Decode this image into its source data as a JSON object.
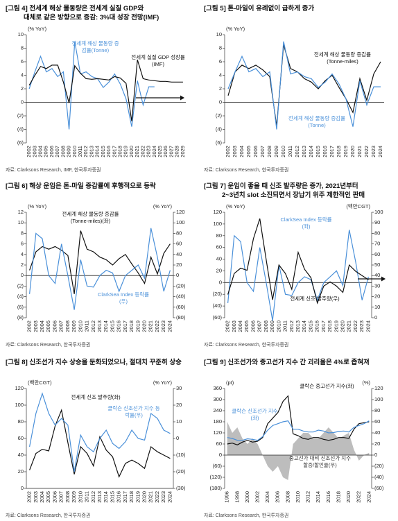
{
  "chart_data": [
    {
      "type": "line",
      "title": [
        "[그림 4] 전세계 해상 물동량은 전세계 실질 GDP와",
        "대체로 같은 방향으로 증감: 3%대 성장 전망(IMF)"
      ],
      "ylabel": "(% YoY)",
      "ylim": [
        -6,
        10
      ],
      "yticks": [
        {
          "value": -6,
          "label": "(6)"
        },
        {
          "value": -4,
          "label": "(4)"
        },
        {
          "value": -2,
          "label": "(2)"
        },
        0,
        2,
        4,
        6,
        8,
        10
      ],
      "categories": [
        "2002",
        "2003",
        "2004",
        "2005",
        "2006",
        "2007",
        "2008",
        "2009",
        "2010",
        "2011",
        "2012",
        "2013",
        "2014",
        "2015",
        "2016",
        "2017",
        "2018",
        "2019",
        "2020",
        "2021",
        "2022",
        "2023",
        "2024",
        "2025",
        "2026",
        "2027",
        "2028",
        "2029"
      ],
      "series": [
        {
          "name": "전세계 해상 물동량 증감률(Tonne)",
          "color": "#4a90d9",
          "values": [
            2.0,
            4.5,
            6.8,
            4.5,
            5.0,
            3.8,
            4.5,
            -4.0,
            9.0,
            4.2,
            4.5,
            3.8,
            3.5,
            2.2,
            3.0,
            4.2,
            2.7,
            0.5,
            -3.6,
            3.2,
            -0.4,
            2.3,
            2.3,
            null,
            null,
            null,
            null,
            null
          ]
        },
        {
          "name": "전세계 실질 GDP 성장률(IMF)",
          "color": "#111111",
          "values": [
            2.5,
            4.0,
            5.3,
            5.0,
            5.5,
            5.5,
            3.0,
            -0.1,
            5.4,
            4.3,
            3.5,
            3.4,
            3.5,
            3.4,
            3.3,
            3.8,
            3.6,
            2.8,
            -2.8,
            6.3,
            3.5,
            3.3,
            3.2,
            3.1,
            3.1,
            3.0,
            3.0,
            3.0
          ]
        }
      ],
      "source": "자료: Clarksons Research, IMF, 한국투자증권"
    },
    {
      "type": "line",
      "title": [
        "[그림 5] 톤-마일이 유례없이 급하게 증가"
      ],
      "ylabel": "(% YoY)",
      "ylim": [
        -6,
        10
      ],
      "yticks": [
        {
          "value": -6,
          "label": "(6)"
        },
        {
          "value": -4,
          "label": "(4)"
        },
        {
          "value": -2,
          "label": "(2)"
        },
        0,
        2,
        4,
        6,
        8,
        10
      ],
      "categories": [
        "2002",
        "2003",
        "2004",
        "2005",
        "2006",
        "2007",
        "2008",
        "2009",
        "2010",
        "2011",
        "2012",
        "2013",
        "2014",
        "2015",
        "2016",
        "2017",
        "2018",
        "2019",
        "2020",
        "2021",
        "2022",
        "2023",
        "2024"
      ],
      "series": [
        {
          "name": "전세계 해상 물동량 증감률(Tonne-miles)",
          "color": "#111111",
          "values": [
            1.0,
            4.5,
            5.5,
            5.0,
            5.5,
            4.8,
            3.8,
            -3.5,
            8.5,
            5.0,
            4.5,
            3.5,
            3.0,
            2.0,
            3.2,
            4.0,
            2.2,
            0.5,
            -1.5,
            3.5,
            0.3,
            4.2,
            6.0
          ]
        },
        {
          "name": "전세계 해상 물동량 증감률(Tonne)",
          "color": "#4a90d9",
          "values": [
            2.0,
            4.5,
            6.8,
            4.5,
            5.0,
            3.8,
            4.5,
            -4.0,
            9.0,
            4.2,
            4.5,
            3.8,
            3.5,
            2.2,
            3.0,
            4.2,
            2.7,
            0.5,
            -3.6,
            3.2,
            -0.4,
            2.3,
            2.3
          ]
        }
      ],
      "source": "자료: Clarksons Research, 한국투자증권"
    },
    {
      "type": "line",
      "title": [
        "[그림 6] 해상 운임은 톤-마일 증감률에 후행적으로 등락"
      ],
      "ylabel": "(% YoY)",
      "y2label": "(% YoY)",
      "ylim": [
        -8,
        12
      ],
      "yticks": [
        {
          "value": -8,
          "label": "(8)"
        },
        {
          "value": -6,
          "label": "(6)"
        },
        {
          "value": -4,
          "label": "(4)"
        },
        {
          "value": -2,
          "label": "(2)"
        },
        0,
        2,
        4,
        6,
        8,
        10,
        12
      ],
      "y2lim": [
        -80,
        120
      ],
      "y2ticks": [
        {
          "value": -80,
          "label": "(80)"
        },
        {
          "value": -60,
          "label": "(60)"
        },
        {
          "value": -40,
          "label": "(40)"
        },
        {
          "value": -20,
          "label": "(20)"
        },
        0,
        20,
        40,
        60,
        80,
        100,
        120
      ],
      "categories": [
        "2002",
        "2003",
        "2004",
        "2005",
        "2006",
        "2007",
        "2008",
        "2009",
        "2010",
        "2011",
        "2012",
        "2013",
        "2014",
        "2015",
        "2016",
        "2017",
        "2018",
        "2019",
        "2020",
        "2021",
        "2022",
        "2023",
        "2024"
      ],
      "series": [
        {
          "name": "전세계 해상 물동량 증감률(Tonne-miles)(좌)",
          "color": "#111111",
          "values": [
            1.0,
            4.5,
            5.5,
            5.0,
            5.5,
            4.8,
            3.8,
            -3.5,
            8.5,
            5.0,
            4.5,
            3.5,
            3.0,
            2.0,
            3.2,
            4.0,
            2.2,
            0.5,
            -1.5,
            3.5,
            0.3,
            4.2,
            6.0
          ]
        },
        {
          "name": "ClarkSea Index 등락률(우)",
          "color": "#4a90d9",
          "axis": "y2",
          "values": [
            -35,
            80,
            70,
            0,
            -15,
            60,
            0,
            -65,
            30,
            -20,
            -22,
            0,
            10,
            5,
            -30,
            0,
            10,
            20,
            -5,
            90,
            35,
            -30,
            10
          ]
        }
      ],
      "source": "자료: Clarksons Research, 한국투자증권"
    },
    {
      "type": "line",
      "title": [
        "[그림 7] 운임이 좋을 때 신조 발주량은 증가, 2021년부터",
        "2~3년치 slot 소진되면서 장납기 위주 제한적인 판매"
      ],
      "ylabel": "(% YoY)",
      "y2label": "(백만CGT)",
      "ylim": [
        -60,
        120
      ],
      "yticks": [
        {
          "value": -60,
          "label": "(60)"
        },
        {
          "value": -40,
          "label": "(40)"
        },
        {
          "value": -20,
          "label": "(20)"
        },
        0,
        20,
        40,
        60,
        80,
        100,
        120
      ],
      "y2lim": [
        0,
        100
      ],
      "y2ticks": [
        0,
        10,
        20,
        30,
        40,
        50,
        60,
        70,
        80,
        90,
        100
      ],
      "categories": [
        "2002",
        "2003",
        "2004",
        "2005",
        "2006",
        "2007",
        "2008",
        "2009",
        "2010",
        "2011",
        "2012",
        "2013",
        "2014",
        "2015",
        "2016",
        "2017",
        "2018",
        "2019",
        "2020",
        "2021",
        "2022",
        "2023",
        "2024"
      ],
      "series": [
        {
          "name": "ClarkSea Index 등락률(좌)",
          "color": "#4a90d9",
          "values": [
            -35,
            80,
            70,
            0,
            -15,
            60,
            0,
            -65,
            30,
            -20,
            -22,
            0,
            10,
            5,
            -30,
            0,
            10,
            20,
            -5,
            90,
            35,
            -30,
            10
          ]
        },
        {
          "name": "전세계 신조 발주량(우)",
          "color": "#111111",
          "axis": "y2",
          "values": [
            22,
            42,
            47,
            45,
            75,
            94,
            55,
            17,
            50,
            42,
            27,
            62,
            46,
            38,
            14,
            30,
            34,
            30,
            24,
            50,
            44,
            40,
            36
          ]
        }
      ],
      "source": "자료: Clarksons Research, 한국투자증권"
    },
    {
      "type": "line",
      "title": [
        "[그림 8] 신조선가 지수 상승을 둔화되었으나, 절대치 꾸준히 상승"
      ],
      "ylabel": "(백만CGT)",
      "y2label": "(% YoY)",
      "ylim": [
        0,
        120
      ],
      "yticks": [
        0,
        20,
        40,
        60,
        80,
        100,
        120
      ],
      "y2lim": [
        -30,
        30
      ],
      "y2ticks": [
        {
          "value": -30,
          "label": "(30)"
        },
        {
          "value": -20,
          "label": "(20)"
        },
        {
          "value": -10,
          "label": "(10)"
        },
        0,
        10,
        20,
        30
      ],
      "categories": [
        "2002",
        "2003",
        "2004",
        "2005",
        "2006",
        "2007",
        "2008",
        "2009",
        "2010",
        "2011",
        "2012",
        "2013",
        "2014",
        "2015",
        "2016",
        "2017",
        "2018",
        "2019",
        "2020",
        "2021",
        "2022",
        "2023",
        "2024"
      ],
      "series": [
        {
          "name": "전세계 신조 발주량(좌)",
          "color": "#111111",
          "values": [
            22,
            42,
            47,
            45,
            75,
            94,
            55,
            17,
            50,
            42,
            27,
            62,
            46,
            38,
            14,
            30,
            34,
            30,
            24,
            50,
            44,
            40,
            36
          ]
        },
        {
          "name": "클락슨 신조선가 지수 등락률(우)",
          "color": "#4a90d9",
          "axis": "y2",
          "values": [
            -5,
            15,
            27,
            15,
            8,
            12,
            8,
            -20,
            2,
            -5,
            -8,
            0,
            5,
            -3,
            -6,
            -2,
            5,
            0,
            -1,
            15,
            12,
            5,
            3
          ]
        }
      ],
      "source": "자료: Clarksons Research, 한국투자증권"
    },
    {
      "type": "line",
      "title": [
        "[그림 9] 신조선가와 중고선가 지수 간 괴리율은 4%로 좁혀져"
      ],
      "ylabel": "(pt)",
      "y2label": "(%)",
      "ylim": [
        -180,
        360
      ],
      "yticks": [
        {
          "value": -180,
          "label": "(180)"
        },
        {
          "value": -120,
          "label": "(120)"
        },
        {
          "value": -60,
          "label": "(60)"
        },
        0,
        60,
        120,
        180,
        240,
        300,
        360
      ],
      "y2lim": [
        -60,
        120
      ],
      "y2ticks": [
        {
          "value": -60,
          "label": "(60)"
        },
        {
          "value": -40,
          "label": "(40)"
        },
        {
          "value": -20,
          "label": "(20)"
        },
        0,
        20,
        40,
        60,
        80,
        100,
        120
      ],
      "categories": [
        "1996",
        null,
        "1998",
        null,
        "2000",
        null,
        "2002",
        null,
        "2004",
        null,
        "2006",
        null,
        "2008",
        null,
        "2010",
        null,
        "2012",
        null,
        "2014",
        null,
        "2016",
        null,
        "2018",
        null,
        "2020",
        null,
        "2022",
        null,
        "2024"
      ],
      "series": [
        {
          "name": "중고선가 대비 신조선가 지수 할증/할인율(우)",
          "color": "#bdbdbd",
          "axis": "y2",
          "style": "area",
          "values": [
            60,
            40,
            50,
            30,
            20,
            30,
            20,
            0,
            -20,
            -30,
            -20,
            -40,
            -45,
            20,
            30,
            40,
            40,
            30,
            30,
            40,
            50,
            40,
            30,
            35,
            40,
            10,
            -10,
            0,
            4
          ]
        },
        {
          "name": "클락슨 중고선가 지수(좌)",
          "color": "#111111",
          "values": [
            60,
            65,
            55,
            70,
            80,
            70,
            75,
            95,
            170,
            200,
            230,
            290,
            320,
            115,
            105,
            90,
            85,
            95,
            95,
            85,
            80,
            85,
            95,
            95,
            90,
            140,
            170,
            175,
            180
          ]
        },
        {
          "name": "클락슨 신조선가 지수(좌)",
          "color": "#4a90d9",
          "values": [
            95,
            90,
            80,
            80,
            88,
            85,
            80,
            100,
            135,
            160,
            170,
            180,
            185,
            140,
            140,
            130,
            125,
            125,
            135,
            130,
            120,
            122,
            128,
            130,
            125,
            150,
            160,
            170,
            185
          ]
        }
      ],
      "source": "자료: Clarksons Research, 한국투자증권"
    }
  ]
}
